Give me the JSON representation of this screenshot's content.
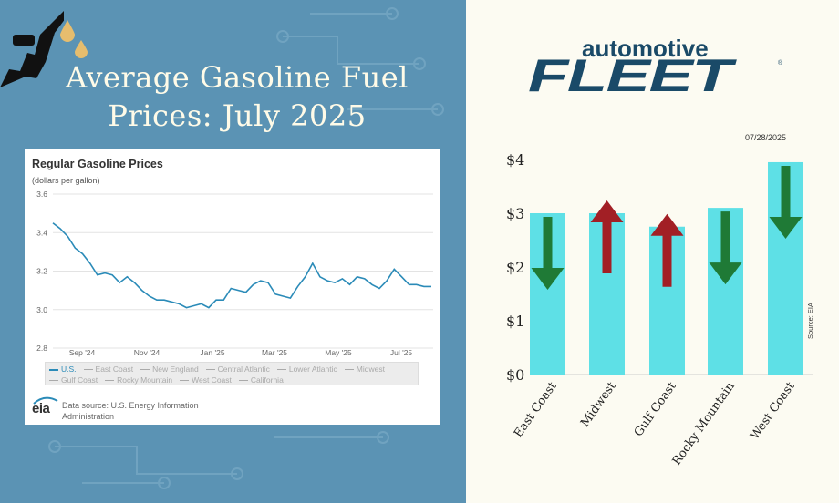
{
  "headline": {
    "line1": "Average Gasoline Fuel",
    "line2": "Prices: July 2025"
  },
  "left_chart": {
    "title": "Regular Gasoline Prices",
    "unit": "(dollars per gallon)",
    "logo": "eia",
    "source": "Data source: U.S. Energy Information Administration",
    "legend": [
      "U.S.",
      "East Coast",
      "New England",
      "Central Atlantic",
      "Lower Atlantic",
      "Midwest",
      "Gulf Coast",
      "Rocky Mountain",
      "West Coast",
      "California"
    ],
    "colors": {
      "line": "#2b8bb8",
      "grid": "#e3e3e3"
    }
  },
  "right_chart": {
    "brand_top": "automotive",
    "brand_bottom": "FLEET",
    "brand_reg": "®",
    "date": "07/28/2025",
    "source": "Source: EIA",
    "colors": {
      "bar": "#5ee0e6",
      "down_arrow": "#1f7a36",
      "up_arrow": "#a21f25"
    }
  },
  "chart_data": [
    {
      "type": "line",
      "title": "Regular Gasoline Prices",
      "ylabel": "(dollars per gallon)",
      "ylim": [
        2.8,
        3.6
      ],
      "yticks": [
        "3.6",
        "3.4",
        "3.2",
        "3.0",
        "2.8"
      ],
      "xticks": [
        "Sep '24",
        "Nov '24",
        "Jan '25",
        "Mar '25",
        "May '25",
        "Jul '25"
      ],
      "grid": true,
      "series": [
        {
          "name": "U.S.",
          "values": [
            3.45,
            3.42,
            3.38,
            3.32,
            3.29,
            3.24,
            3.18,
            3.19,
            3.18,
            3.14,
            3.17,
            3.14,
            3.1,
            3.07,
            3.05,
            3.05,
            3.04,
            3.03,
            3.01,
            3.02,
            3.03,
            3.01,
            3.05,
            3.05,
            3.11,
            3.1,
            3.09,
            3.13,
            3.15,
            3.14,
            3.08,
            3.07,
            3.06,
            3.12,
            3.17,
            3.24,
            3.17,
            3.15,
            3.14,
            3.16,
            3.13,
            3.17,
            3.16,
            3.13,
            3.11,
            3.15,
            3.21,
            3.17,
            3.13,
            3.13,
            3.12,
            3.12
          ]
        }
      ]
    },
    {
      "type": "bar",
      "categories": [
        "East Coast",
        "Midwest",
        "Gulf Coast",
        "Rocky Mountain",
        "West Coast"
      ],
      "values": [
        3.0,
        3.0,
        2.75,
        3.1,
        3.95
      ],
      "trend": [
        "down",
        "up",
        "up",
        "down",
        "down"
      ],
      "yticks": [
        "$0",
        "$1",
        "$2",
        "$3",
        "$4"
      ],
      "ylim": [
        0,
        4.2
      ]
    }
  ]
}
